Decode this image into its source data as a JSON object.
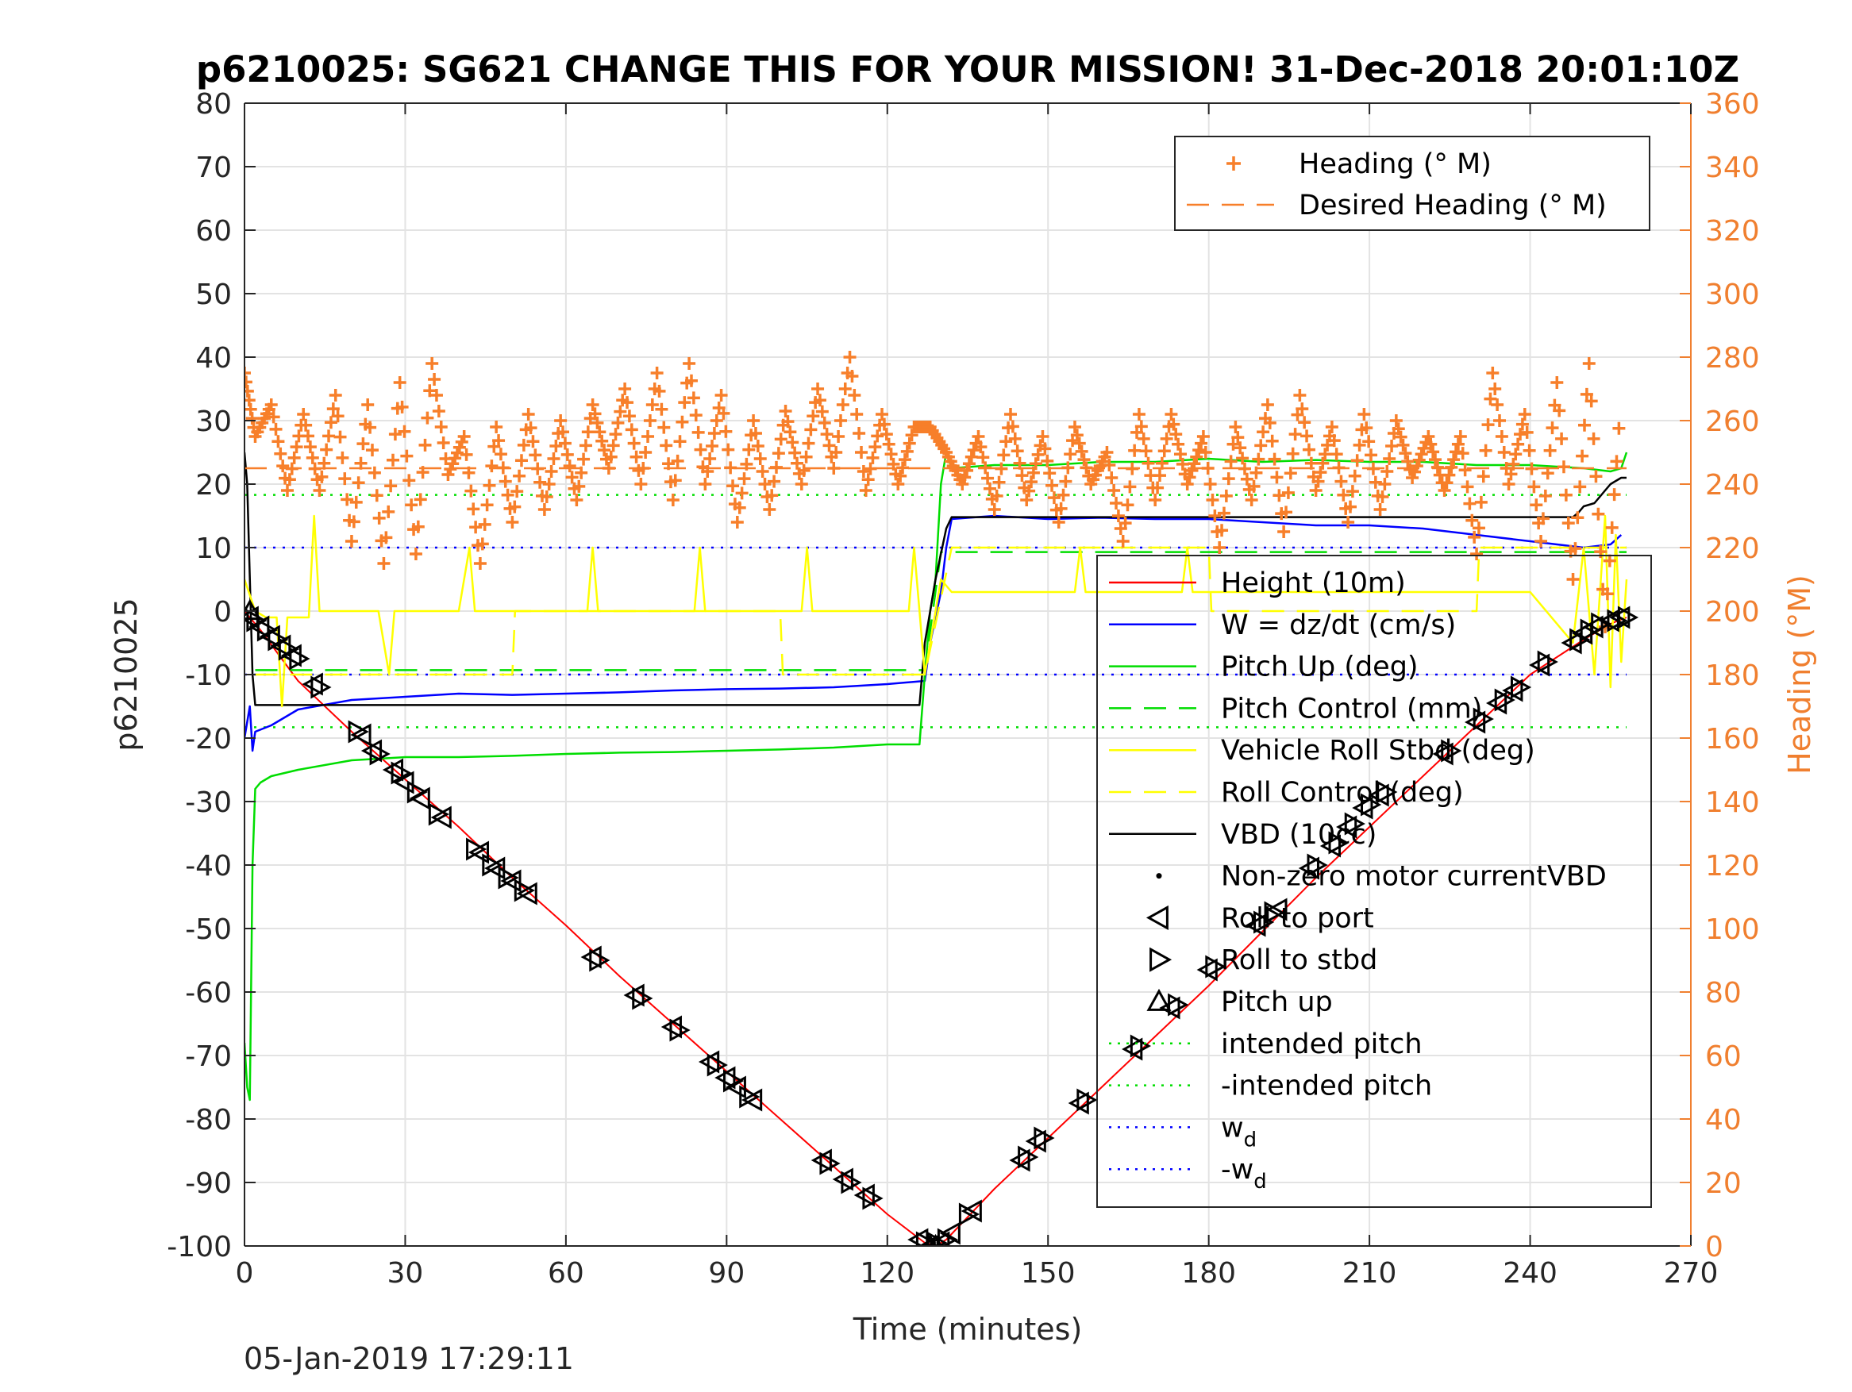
{
  "timestamp": "05-Jan-2019 17:29:11",
  "colors": {
    "height": "#ff0000",
    "w": "#0000ff",
    "pitch": "#00dd00",
    "roll": "#ffff00",
    "vbd": "#000000",
    "heading": "#f77f2a",
    "axis_right": "#f07f2f"
  },
  "chart_data": {
    "type": "line",
    "title": "p6210025: SG621 CHANGE THIS FOR YOUR MISSION! 31-Dec-2018 20:01:10Z",
    "xlabel": "Time (minutes)",
    "ylabel": "p6210025",
    "ylabel_right": "Heading (°M)",
    "xlim": [
      0,
      270
    ],
    "ylim": [
      -100,
      80
    ],
    "ylim_right": [
      0,
      360
    ],
    "x_ticks": [
      0,
      30,
      60,
      90,
      120,
      150,
      180,
      210,
      240,
      270
    ],
    "y_ticks": [
      80,
      70,
      60,
      50,
      40,
      30,
      20,
      10,
      0,
      -10,
      -20,
      -30,
      -40,
      -50,
      -60,
      -70,
      -80,
      -90,
      -100
    ],
    "y_ticks_right": [
      360,
      340,
      320,
      300,
      280,
      260,
      240,
      220,
      200,
      180,
      160,
      140,
      120,
      100,
      80,
      60,
      40,
      20,
      0
    ],
    "grid": true,
    "heading_legend": [
      {
        "label": "Heading (° M)",
        "style": "plus"
      },
      {
        "label": "Desired Heading (° M)",
        "style": "dash"
      }
    ],
    "legend_entries": [
      {
        "label": "Height (10m)",
        "style": "solid",
        "color": "#ff0000"
      },
      {
        "label": "W = dz/dt (cm/s)",
        "style": "solid",
        "color": "#0000ff"
      },
      {
        "label": "Pitch Up (deg)",
        "style": "solid",
        "color": "#00dd00"
      },
      {
        "label": "Pitch Control (mm)",
        "style": "dash",
        "color": "#00dd00"
      },
      {
        "label": "Vehicle Roll Stbd (deg)",
        "style": "solid",
        "color": "#ffff00"
      },
      {
        "label": "Roll Control (deg)",
        "style": "dash",
        "color": "#ffff00"
      },
      {
        "label": "VBD (10cc)",
        "style": "solid",
        "color": "#000000"
      },
      {
        "label": "Non-zero motor currentVBD",
        "style": "dot",
        "color": "#000000"
      },
      {
        "label": "Roll to port",
        "style": "tri-left",
        "color": "#000000"
      },
      {
        "label": "Roll to stbd",
        "style": "tri-right",
        "color": "#000000"
      },
      {
        "label": "Pitch up",
        "style": "tri-up",
        "color": "#000000"
      },
      {
        "label": "intended pitch",
        "style": "dotted",
        "color": "#00dd00"
      },
      {
        "label": "-intended pitch",
        "style": "dotted",
        "color": "#00dd00"
      },
      {
        "label": "w",
        "sub": "d",
        "style": "dotted",
        "color": "#0000ff"
      },
      {
        "label": "-w",
        "sub": "d",
        "style": "dotted",
        "color": "#0000ff"
      }
    ],
    "reference_lines": {
      "intended_pitch": 18.3,
      "neg_intended_pitch": -18.3,
      "w_d": 10,
      "neg_w_d": -10,
      "desired_heading": 245,
      "x_end": 258
    },
    "series": [
      {
        "name": "Height (10m)",
        "color": "#ff0000",
        "x": [
          0,
          3,
          10,
          20,
          30,
          40,
          50,
          60,
          70,
          80,
          90,
          100,
          110,
          120,
          127,
          129,
          131,
          140,
          150,
          160,
          170,
          180,
          190,
          200,
          210,
          220,
          230,
          240,
          250,
          255,
          258
        ],
        "y": [
          0,
          -3,
          -11,
          -19,
          -26.5,
          -34,
          -42,
          -49.5,
          -57.5,
          -65,
          -72.5,
          -80,
          -87.5,
          -95,
          -99.5,
          -100,
          -99,
          -91,
          -83,
          -75,
          -67,
          -59,
          -50.5,
          -42,
          -34,
          -26,
          -18,
          -10,
          -4.5,
          -2,
          -1
        ]
      },
      {
        "name": "W = dz/dt (cm/s)",
        "color": "#0000ff",
        "x": [
          0,
          1,
          1.5,
          2,
          5,
          10,
          20,
          30,
          40,
          50,
          60,
          70,
          80,
          90,
          100,
          110,
          120,
          127,
          128,
          130,
          131,
          132,
          140,
          150,
          160,
          170,
          180,
          190,
          200,
          210,
          220,
          230,
          240,
          245,
          250,
          255,
          257
        ],
        "y": [
          -20,
          -15,
          -22,
          -19,
          -18,
          -15.5,
          -14,
          -13.5,
          -13,
          -13.2,
          -13,
          -12.8,
          -12.5,
          -12.3,
          -12.2,
          -12,
          -11.5,
          -11,
          -5,
          3,
          10,
          14.5,
          15,
          14.5,
          14.7,
          14.5,
          14.5,
          14,
          13.5,
          13.5,
          13,
          12,
          11,
          10.5,
          10,
          10.5,
          12
        ]
      },
      {
        "name": "Pitch Up (deg)",
        "color": "#00dd00",
        "x": [
          0,
          0.5,
          1,
          1.5,
          2,
          3,
          5,
          10,
          20,
          30,
          40,
          50,
          60,
          70,
          80,
          90,
          100,
          110,
          120,
          126,
          127,
          128,
          129,
          130,
          131,
          132,
          140,
          150,
          160,
          170,
          180,
          190,
          200,
          210,
          220,
          230,
          240,
          250,
          255,
          257,
          258
        ],
        "y": [
          -68,
          -75,
          -77,
          -40,
          -28,
          -27,
          -26,
          -25,
          -23.5,
          -23,
          -23,
          -22.8,
          -22.5,
          -22.3,
          -22.2,
          -22,
          -21.8,
          -21.5,
          -21,
          -21,
          -10,
          0,
          5,
          20,
          25,
          22.5,
          23,
          23,
          23.5,
          23.5,
          24,
          23.5,
          23.8,
          23.5,
          23.5,
          23,
          23,
          22.5,
          22,
          22.5,
          25
        ]
      },
      {
        "name": "Pitch Control (mm)",
        "color": "#00dd00",
        "dashed": true,
        "x": [
          2,
          127,
          130,
          258
        ],
        "y": [
          -9.3,
          -9.3,
          9.3,
          9.3
        ]
      },
      {
        "name": "VBD (10cc)",
        "color": "#000000",
        "x": [
          0,
          0.5,
          1.5,
          2,
          126,
          127,
          128,
          129,
          131,
          132,
          240,
          248,
          249,
          250,
          252,
          253,
          254,
          255,
          256,
          257,
          258
        ],
        "y": [
          25,
          20,
          -10,
          -14.8,
          -14.8,
          -5,
          0,
          5,
          13,
          14.8,
          14.8,
          14.8,
          15.5,
          16.5,
          17,
          18,
          19,
          20,
          20.5,
          21,
          21
        ]
      },
      {
        "name": "Vehicle Roll Stbd (deg)",
        "color": "#ffff00",
        "x": [
          0,
          2,
          4,
          6,
          7,
          8,
          10,
          12,
          13,
          14,
          20,
          25,
          27,
          28,
          30,
          40,
          42,
          43,
          44,
          50,
          60,
          64,
          65,
          66,
          70,
          80,
          84,
          85,
          86,
          90,
          100,
          104,
          105,
          106,
          110,
          120,
          124,
          125,
          126,
          127,
          130,
          132,
          140,
          150,
          155,
          156,
          157,
          160,
          170,
          175,
          176,
          177,
          180,
          190,
          200,
          210,
          220,
          230,
          240,
          248,
          250,
          252,
          254,
          255,
          256,
          257,
          258
        ],
        "y": [
          5,
          0,
          -1,
          -1,
          -15,
          -1,
          -1,
          -1,
          15,
          0,
          0,
          0,
          -10,
          0,
          0,
          0,
          10,
          0,
          0,
          0,
          0,
          0,
          10,
          0,
          0,
          0,
          0,
          10,
          0,
          0,
          0,
          0,
          10,
          0,
          0,
          0,
          0,
          10,
          0,
          -10,
          5,
          3,
          3,
          3,
          3,
          10,
          3,
          3,
          3,
          3,
          10,
          3,
          3,
          3,
          3,
          3,
          3,
          3,
          3,
          -5,
          10,
          -10,
          15,
          -12,
          12,
          -8,
          5
        ]
      },
      {
        "name": "Roll Control (deg)",
        "color": "#ffff00",
        "dashed": true,
        "x": [
          2,
          50,
          50.5,
          100,
          100.5,
          127,
          132,
          180,
          180.5,
          230,
          230.5,
          258
        ],
        "y": [
          -10,
          -10,
          0,
          0,
          -10,
          -10,
          10,
          10,
          0,
          0,
          10,
          10
        ]
      },
      {
        "name": "Heading (° M)",
        "axis": "right",
        "color": "#f77f2a",
        "x": [
          0,
          2,
          5,
          8,
          11,
          14,
          17,
          20,
          23,
          26,
          29,
          32,
          35,
          38,
          41,
          44,
          47,
          50,
          53,
          56,
          59,
          62,
          65,
          68,
          71,
          74,
          77,
          80,
          83,
          86,
          89,
          92,
          95,
          98,
          101,
          104,
          107,
          110,
          113,
          116,
          119,
          122,
          125,
          128,
          131,
          134,
          137,
          140,
          143,
          146,
          149,
          152,
          155,
          158,
          161,
          164,
          167,
          170,
          173,
          176,
          179,
          182,
          185,
          188,
          191,
          194,
          197,
          200,
          203,
          206,
          209,
          212,
          215,
          218,
          221,
          224,
          227,
          230,
          233,
          236,
          239,
          242,
          245,
          248,
          251,
          254,
          257
        ],
        "y": [
          275,
          255,
          265,
          238,
          262,
          238,
          268,
          222,
          265,
          215,
          272,
          218,
          278,
          243,
          255,
          215,
          258,
          228,
          262,
          232,
          260,
          235,
          265,
          245,
          270,
          240,
          275,
          235,
          278,
          240,
          268,
          228,
          260,
          232,
          263,
          240,
          270,
          245,
          280,
          238,
          262,
          240,
          258,
          258,
          250,
          240,
          255,
          232,
          262,
          235,
          255,
          228,
          258,
          240,
          250,
          222,
          262,
          235,
          262,
          240,
          255,
          220,
          258,
          235,
          265,
          225,
          268,
          238,
          258,
          228,
          262,
          232,
          260,
          242,
          255,
          238,
          255,
          218,
          275,
          240,
          262,
          222,
          272,
          210,
          278,
          195,
          268
        ]
      },
      {
        "name": "Desired Heading (° M)",
        "axis": "right",
        "color": "#f77f2a",
        "dashed": true,
        "x": [
          0,
          258
        ],
        "y": [
          245,
          245
        ]
      }
    ],
    "markers": [
      {
        "name": "Roll to port",
        "shape": "tri-left",
        "x": [
          1,
          3,
          5,
          7,
          9,
          13,
          22,
          24,
          28,
          30,
          33,
          37,
          44,
          47,
          50,
          53,
          65,
          73,
          80,
          87,
          90,
          92,
          95,
          108,
          112,
          116,
          126,
          128,
          130,
          132,
          136,
          145,
          148,
          156,
          166,
          173,
          180,
          189,
          193,
          199,
          203,
          206,
          209,
          212,
          224,
          230,
          234,
          237,
          242,
          248,
          250,
          252,
          255,
          257
        ],
        "y": [
          -1,
          -2.5,
          -4,
          -5.5,
          -7,
          -11.5,
          -19.5,
          -22,
          -25,
          -27,
          -29.5,
          -32.5,
          -38,
          -40.5,
          -42.5,
          -44.5,
          -54.5,
          -60.5,
          -65.5,
          -71,
          -73.5,
          -75,
          -77,
          -86.5,
          -89.5,
          -92,
          -99,
          -100,
          -99.5,
          -98,
          -94.5,
          -86.5,
          -83.5,
          -77.5,
          -69,
          -62.5,
          -56.5,
          -49.5,
          -47,
          -40.5,
          -37,
          -34,
          -31,
          -29,
          -22.5,
          -17.5,
          -14.5,
          -12.5,
          -8.5,
          -5,
          -3.5,
          -2.5,
          -1.5,
          -1
        ]
      },
      {
        "name": "Roll to stbd",
        "shape": "tri-right",
        "x": [
          2,
          4,
          6,
          8,
          10,
          14,
          21,
          25,
          29,
          32,
          36,
          43,
          46,
          49,
          52,
          66,
          74,
          81,
          88,
          91,
          94,
          109,
          113,
          117,
          127,
          129,
          131,
          135,
          146,
          149,
          157,
          167,
          174,
          181,
          190,
          192,
          200,
          204,
          207,
          210,
          213,
          225,
          231,
          235,
          238,
          243,
          249,
          251,
          253,
          256,
          258
        ],
        "y": [
          -1.5,
          -3,
          -4.5,
          -6,
          -7.5,
          -12,
          -19,
          -22.5,
          -25.5,
          -28.5,
          -32,
          -37.5,
          -40,
          -42,
          -44,
          -55,
          -61,
          -66,
          -71.5,
          -74,
          -76.5,
          -87,
          -90,
          -92.5,
          -99.5,
          -99.5,
          -99,
          -95,
          -86,
          -83,
          -77,
          -68.5,
          -62,
          -56,
          -49,
          -47.5,
          -40,
          -36.5,
          -33.5,
          -30.5,
          -28.5,
          -22,
          -17,
          -14,
          -12,
          -8,
          -4.5,
          -3,
          -2,
          -1.5,
          -1
        ]
      },
      {
        "name": "Pitch up",
        "shape": "tri-up",
        "x": [
          1,
          128,
          129
        ],
        "y": [
          0,
          -100,
          -100
        ]
      }
    ]
  }
}
